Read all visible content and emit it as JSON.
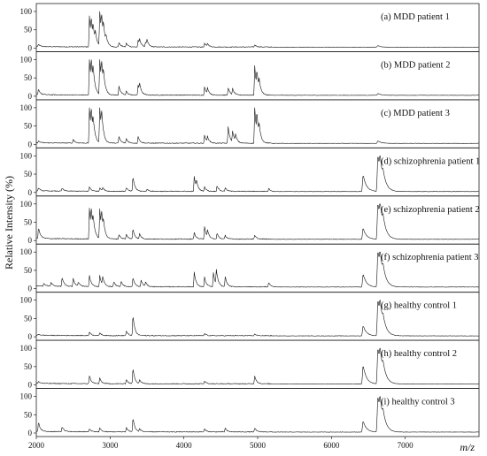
{
  "chart_data": {
    "type": "line",
    "ylabel": "Relative Intensity (%)",
    "xlabel": "m/z",
    "xlim": [
      2000,
      8000
    ],
    "x_ticks": [
      2000,
      3000,
      4000,
      5000,
      6000,
      7000
    ],
    "x_tick_labels": [
      "2000",
      "3000",
      "4000",
      "5000",
      "6000",
      "7000"
    ],
    "ylim": [
      0,
      100
    ],
    "y_ticks": [
      0,
      50,
      100
    ],
    "y_tick_labels": [
      "0",
      "50",
      "100"
    ],
    "grid": false,
    "panels": [
      {
        "label": "(a) MDD patient 1",
        "baseline": 2,
        "peaks": [
          [
            2030,
            6
          ],
          [
            2720,
            85
          ],
          [
            2745,
            50
          ],
          [
            2770,
            35
          ],
          [
            2800,
            25
          ],
          [
            2860,
            100
          ],
          [
            2885,
            55
          ],
          [
            2910,
            35
          ],
          [
            2945,
            18
          ],
          [
            3120,
            12
          ],
          [
            3220,
            10
          ],
          [
            3380,
            18
          ],
          [
            3400,
            14
          ],
          [
            3480,
            12
          ],
          [
            3500,
            14
          ],
          [
            4280,
            10
          ],
          [
            4320,
            8
          ],
          [
            4960,
            6
          ],
          [
            6630,
            4
          ]
        ]
      },
      {
        "label": "(b) MDD patient 2",
        "baseline": 2,
        "peaks": [
          [
            2030,
            15
          ],
          [
            2720,
            100
          ],
          [
            2745,
            65
          ],
          [
            2770,
            45
          ],
          [
            2860,
            100
          ],
          [
            2885,
            60
          ],
          [
            2910,
            35
          ],
          [
            3120,
            25
          ],
          [
            3220,
            10
          ],
          [
            3380,
            28
          ],
          [
            3400,
            20
          ],
          [
            4280,
            22
          ],
          [
            4320,
            16
          ],
          [
            4600,
            20
          ],
          [
            4660,
            16
          ],
          [
            4960,
            80
          ],
          [
            4990,
            45
          ],
          [
            5020,
            25
          ],
          [
            6630,
            5
          ]
        ]
      },
      {
        "label": "(c) MDD patient 3",
        "baseline": 2,
        "peaks": [
          [
            2030,
            5
          ],
          [
            2500,
            10
          ],
          [
            2720,
            100
          ],
          [
            2745,
            60
          ],
          [
            2770,
            40
          ],
          [
            2860,
            100
          ],
          [
            2885,
            55
          ],
          [
            3120,
            18
          ],
          [
            3220,
            12
          ],
          [
            3380,
            18
          ],
          [
            4280,
            22
          ],
          [
            4320,
            15
          ],
          [
            4600,
            45
          ],
          [
            4660,
            30
          ],
          [
            4700,
            18
          ],
          [
            4960,
            100
          ],
          [
            4990,
            55
          ],
          [
            5020,
            30
          ],
          [
            6630,
            7
          ]
        ]
      },
      {
        "label": "(d) schizophrenia patient 1",
        "baseline": 2,
        "peaks": [
          [
            2030,
            8
          ],
          [
            2350,
            8
          ],
          [
            2720,
            12
          ],
          [
            2860,
            10
          ],
          [
            2900,
            8
          ],
          [
            3220,
            10
          ],
          [
            3310,
            40
          ],
          [
            3500,
            6
          ],
          [
            4140,
            40
          ],
          [
            4170,
            20
          ],
          [
            4280,
            12
          ],
          [
            4450,
            16
          ],
          [
            4560,
            10
          ],
          [
            5150,
            8
          ],
          [
            6430,
            45
          ],
          [
            6630,
            100
          ],
          [
            6660,
            50
          ],
          [
            6700,
            20
          ]
        ]
      },
      {
        "label": "(e) schizophrenia patient 2",
        "baseline": 3,
        "peaks": [
          [
            2030,
            30
          ],
          [
            2720,
            85
          ],
          [
            2745,
            55
          ],
          [
            2770,
            35
          ],
          [
            2860,
            80
          ],
          [
            2885,
            50
          ],
          [
            2910,
            25
          ],
          [
            3120,
            12
          ],
          [
            3220,
            12
          ],
          [
            3310,
            28
          ],
          [
            3400,
            14
          ],
          [
            4140,
            18
          ],
          [
            4280,
            35
          ],
          [
            4320,
            18
          ],
          [
            4450,
            16
          ],
          [
            4560,
            10
          ],
          [
            4960,
            10
          ],
          [
            6430,
            30
          ],
          [
            6630,
            100
          ],
          [
            6660,
            55
          ],
          [
            6700,
            25
          ]
        ]
      },
      {
        "label": "(f) schizophrenia patient 3",
        "baseline": 4,
        "peaks": [
          [
            2100,
            8
          ],
          [
            2200,
            10
          ],
          [
            2350,
            25
          ],
          [
            2500,
            22
          ],
          [
            2570,
            12
          ],
          [
            2720,
            30
          ],
          [
            2860,
            30
          ],
          [
            2900,
            22
          ],
          [
            3050,
            14
          ],
          [
            3150,
            16
          ],
          [
            3310,
            25
          ],
          [
            3420,
            18
          ],
          [
            3480,
            12
          ],
          [
            4140,
            40
          ],
          [
            4280,
            26
          ],
          [
            4400,
            38
          ],
          [
            4440,
            40
          ],
          [
            4560,
            28
          ],
          [
            5150,
            12
          ],
          [
            6430,
            35
          ],
          [
            6630,
            100
          ],
          [
            6660,
            50
          ],
          [
            6700,
            22
          ]
        ]
      },
      {
        "label": "(g) healthy control 1",
        "baseline": 2,
        "peaks": [
          [
            2030,
            3
          ],
          [
            2720,
            10
          ],
          [
            2860,
            8
          ],
          [
            3220,
            12
          ],
          [
            3310,
            55
          ],
          [
            4280,
            6
          ],
          [
            4960,
            5
          ],
          [
            6430,
            28
          ],
          [
            6630,
            100
          ],
          [
            6660,
            50
          ],
          [
            6700,
            20
          ]
        ]
      },
      {
        "label": "(h) healthy control 2",
        "baseline": 2,
        "peaks": [
          [
            2030,
            5
          ],
          [
            2720,
            22
          ],
          [
            2860,
            15
          ],
          [
            3220,
            12
          ],
          [
            3310,
            42
          ],
          [
            3400,
            10
          ],
          [
            4280,
            8
          ],
          [
            4960,
            22
          ],
          [
            6430,
            50
          ],
          [
            6630,
            100
          ],
          [
            6660,
            50
          ],
          [
            6700,
            22
          ]
        ]
      },
      {
        "label": "(i) healthy control 3",
        "baseline": 2,
        "peaks": [
          [
            2030,
            25
          ],
          [
            2350,
            14
          ],
          [
            2720,
            8
          ],
          [
            2860,
            10
          ],
          [
            3220,
            12
          ],
          [
            3310,
            38
          ],
          [
            3400,
            8
          ],
          [
            4280,
            8
          ],
          [
            4560,
            10
          ],
          [
            4960,
            10
          ],
          [
            6430,
            30
          ],
          [
            6630,
            100
          ],
          [
            6660,
            50
          ],
          [
            6700,
            22
          ]
        ]
      }
    ]
  }
}
